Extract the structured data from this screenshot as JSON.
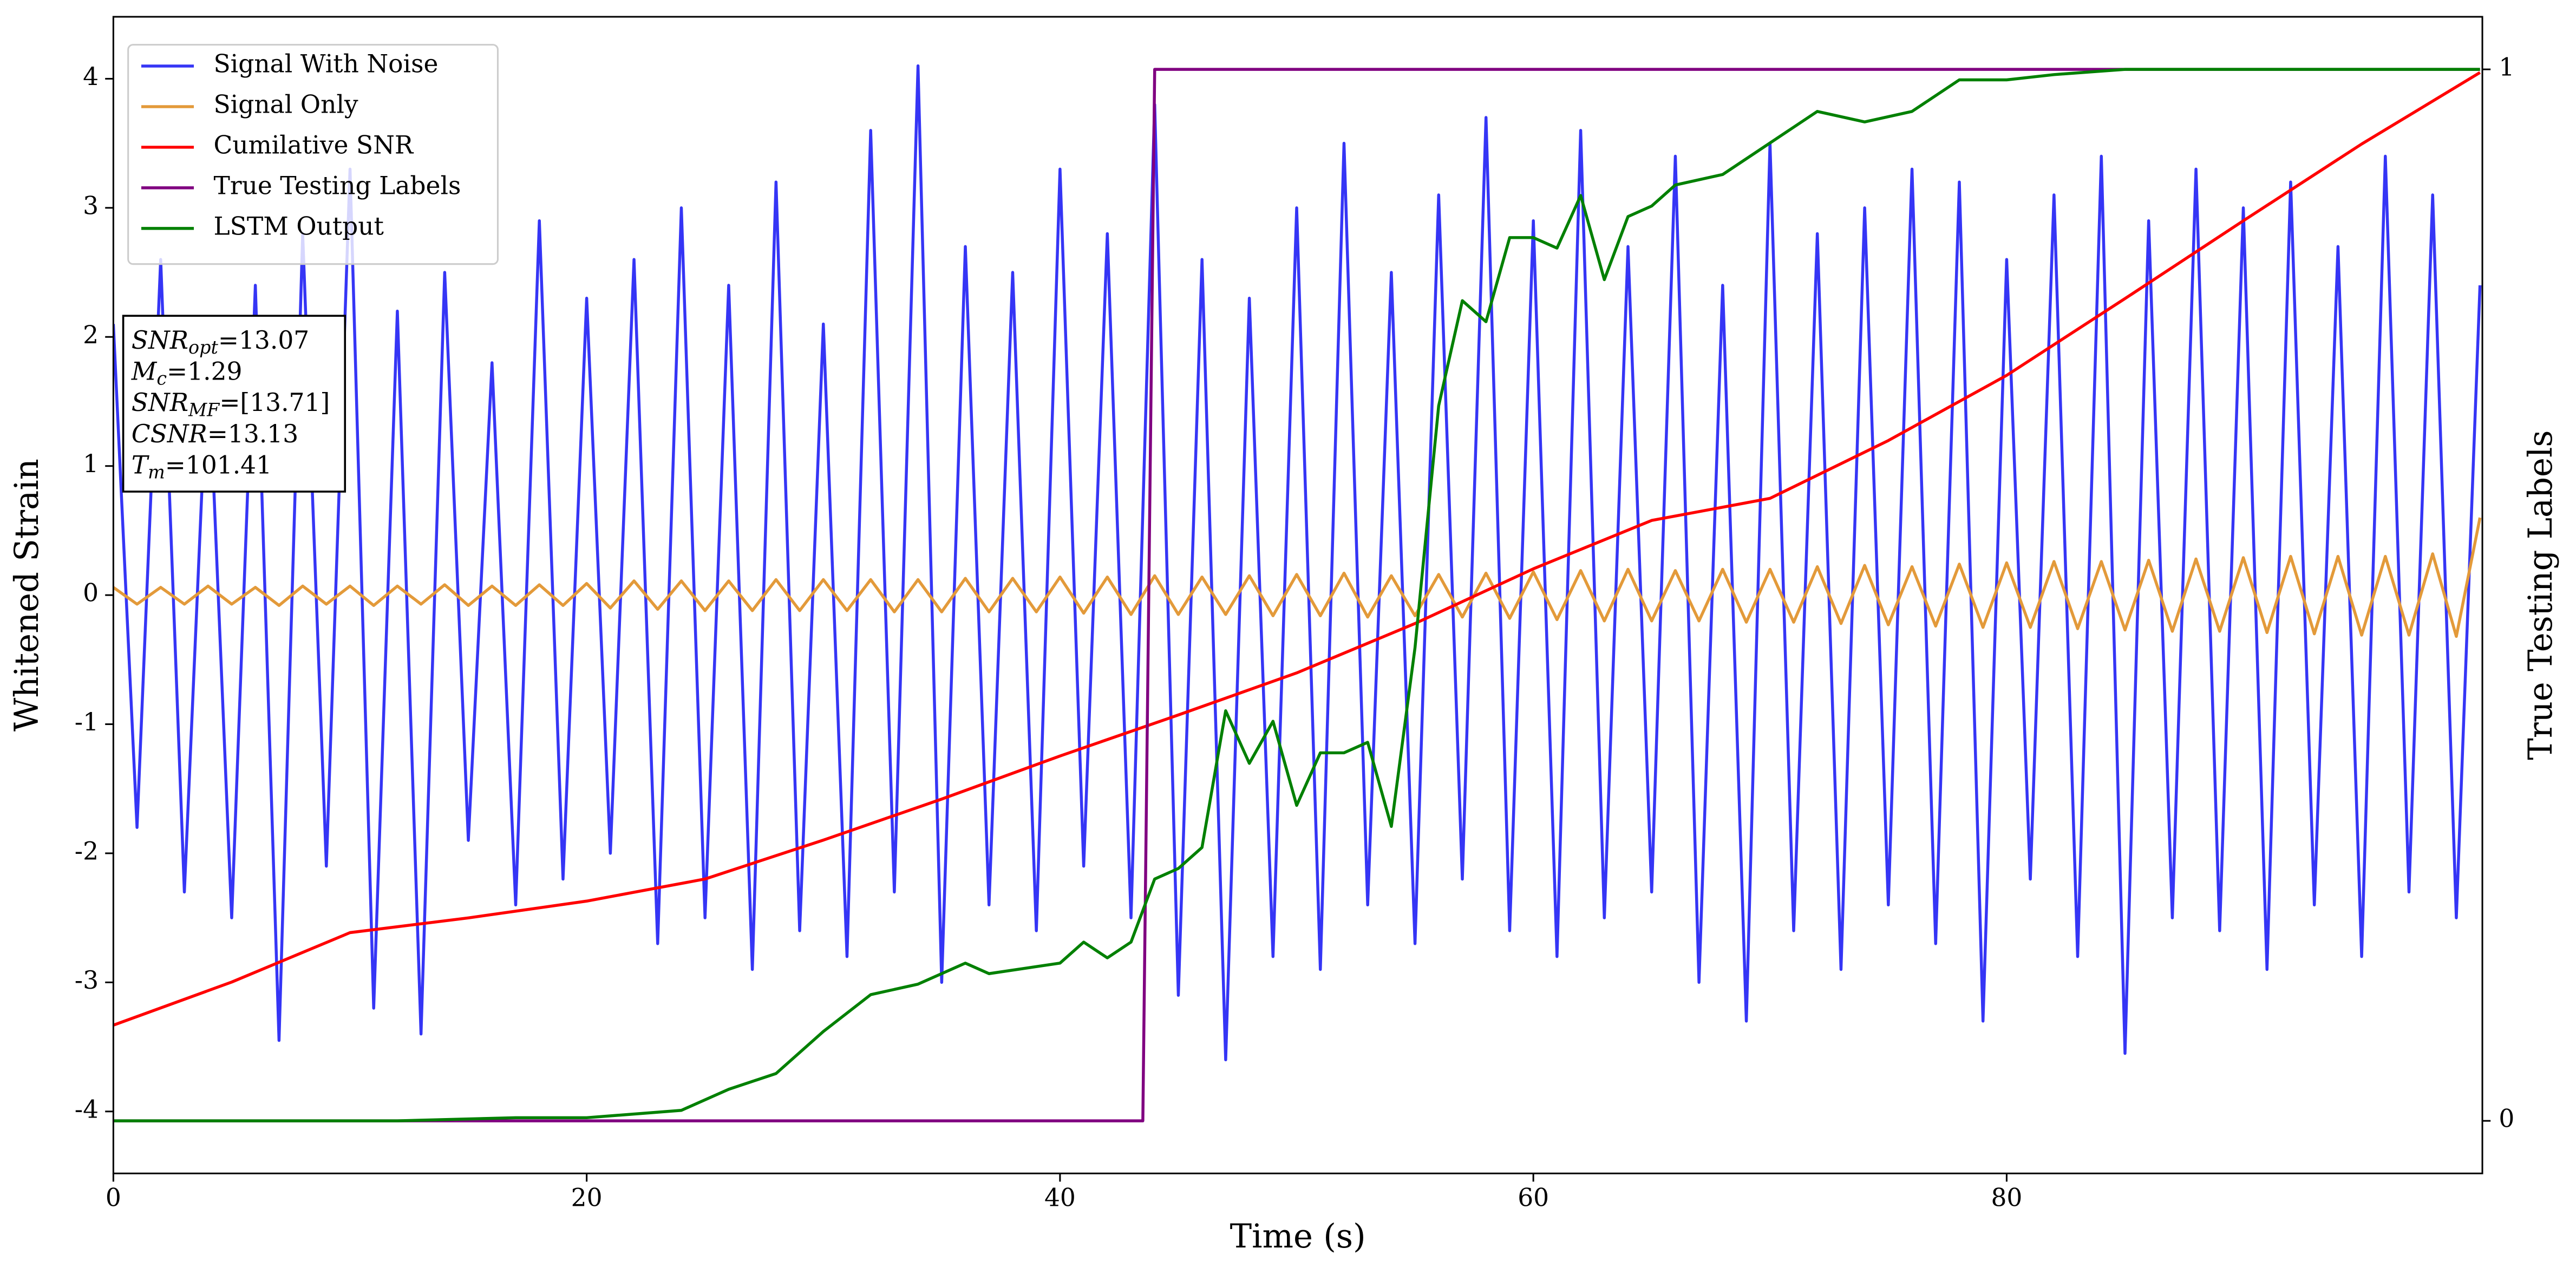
{
  "chart_data": {
    "type": "line",
    "xlabel": "Time (s)",
    "ylabel": "Whitened Strain",
    "y2label": "True Testing Labels",
    "xlim": [
      0,
      100.1
    ],
    "ylim": [
      -4.48,
      4.48
    ],
    "y2lim": [
      -0.05,
      1.05
    ],
    "xticks": [
      0,
      20,
      40,
      60,
      80
    ],
    "yticks": [
      -4,
      -3,
      -2,
      -1,
      0,
      1,
      2,
      3,
      4
    ],
    "y2ticks": [
      0,
      1
    ],
    "legend": "upper left",
    "x": [
      0,
      1,
      2,
      3,
      4,
      5,
      6,
      7,
      8,
      9,
      10,
      11,
      12,
      13,
      14,
      15,
      16,
      17,
      18,
      19,
      20,
      21,
      22,
      23,
      24,
      25,
      26,
      27,
      28,
      29,
      30,
      31,
      32,
      33,
      34,
      35,
      36,
      37,
      38,
      39,
      40,
      41,
      42,
      43,
      44,
      45,
      46,
      47,
      48,
      49,
      50,
      51,
      52,
      53,
      54,
      55,
      56,
      57,
      58,
      59,
      60,
      61,
      62,
      63,
      64,
      65,
      66,
      67,
      68,
      69,
      70,
      71,
      72,
      73,
      74,
      75,
      76,
      77,
      78,
      79,
      80,
      81,
      82,
      83,
      84,
      85,
      86,
      87,
      88,
      89,
      90,
      91,
      92,
      93,
      94,
      95,
      96,
      97,
      98,
      99,
      100
    ],
    "series": [
      {
        "name": "Signal With Noise",
        "color": "#3535f5",
        "values": [
          2.1,
          -1.8,
          2.6,
          -2.3,
          1.9,
          -2.5,
          2.4,
          -3.45,
          2.8,
          -2.1,
          3.3,
          -3.2,
          2.2,
          -3.4,
          2.5,
          -1.9,
          1.8,
          -2.4,
          2.9,
          -2.2,
          2.3,
          -2.0,
          2.6,
          -2.7,
          3.0,
          -2.5,
          2.4,
          -2.9,
          3.2,
          -2.6,
          2.1,
          -2.8,
          3.6,
          -2.3,
          4.1,
          -3.0,
          2.7,
          -2.4,
          2.5,
          -2.6,
          3.3,
          -2.1,
          2.8,
          -2.5,
          3.8,
          -3.1,
          2.6,
          -3.6,
          2.3,
          -2.8,
          3.0,
          -2.9,
          3.5,
          -2.4,
          2.5,
          -2.7,
          3.1,
          -2.2,
          3.7,
          -2.6,
          2.9,
          -2.8,
          3.6,
          -2.5,
          2.7,
          -2.3,
          3.4,
          -3.0,
          2.4,
          -3.3,
          3.5,
          -2.6,
          2.8,
          -2.9,
          3.0,
          -2.4,
          3.3,
          -2.7,
          3.2,
          -3.3,
          2.6,
          -2.2,
          3.1,
          -2.8,
          3.4,
          -3.55,
          2.9,
          -2.5,
          3.3,
          -2.6,
          3.0,
          -2.9,
          3.2,
          -2.4,
          2.7,
          -2.8,
          3.4,
          -2.3,
          3.1,
          -2.5,
          2.4
        ]
      },
      {
        "name": "Signal Only",
        "color": "#e39a3a",
        "values": [
          0.06,
          -0.07,
          0.06,
          -0.07,
          0.07,
          -0.07,
          0.06,
          -0.08,
          0.07,
          -0.07,
          0.07,
          -0.08,
          0.07,
          -0.07,
          0.08,
          -0.08,
          0.07,
          -0.08,
          0.08,
          -0.08,
          0.09,
          -0.1,
          0.11,
          -0.11,
          0.11,
          -0.12,
          0.11,
          -0.12,
          0.12,
          -0.12,
          0.12,
          -0.12,
          0.12,
          -0.13,
          0.12,
          -0.13,
          0.13,
          -0.13,
          0.13,
          -0.13,
          0.14,
          -0.14,
          0.14,
          -0.15,
          0.15,
          -0.15,
          0.14,
          -0.15,
          0.15,
          -0.16,
          0.16,
          -0.16,
          0.17,
          -0.17,
          0.15,
          -0.16,
          0.16,
          -0.17,
          0.17,
          -0.18,
          0.18,
          -0.19,
          0.19,
          -0.2,
          0.2,
          -0.2,
          0.19,
          -0.2,
          0.2,
          -0.21,
          0.2,
          -0.21,
          0.22,
          -0.22,
          0.23,
          -0.23,
          0.22,
          -0.24,
          0.24,
          -0.25,
          0.25,
          -0.25,
          0.26,
          -0.26,
          0.26,
          -0.27,
          0.27,
          -0.28,
          0.28,
          -0.28,
          0.29,
          -0.29,
          0.3,
          -0.3,
          0.3,
          -0.31,
          0.3,
          -0.31,
          0.32,
          -0.32,
          0.6
        ]
      },
      {
        "name": "Cumilative SNR",
        "color": "#ff0000",
        "axis": "y2",
        "x": [
          0,
          5,
          10,
          15,
          20,
          25,
          30,
          35,
          40,
          45,
          50,
          55,
          60,
          65,
          70,
          75,
          80,
          85,
          90,
          95,
          100
        ],
        "values": [
          0.091,
          0.132,
          0.179,
          0.193,
          0.209,
          0.23,
          0.267,
          0.306,
          0.347,
          0.386,
          0.426,
          0.473,
          0.525,
          0.571,
          0.592,
          0.647,
          0.709,
          0.782,
          0.856,
          0.929,
          0.997
        ]
      },
      {
        "name": "True Testing Labels",
        "color": "#800080",
        "axis": "y2",
        "x": [
          0,
          43.5,
          44,
          100
        ],
        "values": [
          0,
          0,
          1,
          1
        ]
      },
      {
        "name": "LSTM Output",
        "color": "#008000",
        "axis": "y2",
        "x": [
          0,
          12,
          17,
          20,
          24,
          26,
          28,
          30,
          32,
          34,
          36,
          37,
          40,
          41,
          42,
          43,
          44,
          45,
          46,
          47,
          48,
          49,
          50,
          51,
          52,
          53,
          54,
          55,
          56,
          57,
          58,
          59,
          60,
          61,
          62,
          63,
          64,
          65,
          66,
          68,
          70,
          72,
          74,
          76,
          78,
          80,
          82,
          85,
          90,
          100
        ],
        "values": [
          0,
          0,
          0.003,
          0.003,
          0.01,
          0.03,
          0.045,
          0.085,
          0.12,
          0.13,
          0.15,
          0.14,
          0.15,
          0.17,
          0.155,
          0.17,
          0.23,
          0.24,
          0.26,
          0.39,
          0.34,
          0.38,
          0.3,
          0.35,
          0.35,
          0.36,
          0.28,
          0.45,
          0.68,
          0.78,
          0.76,
          0.84,
          0.84,
          0.83,
          0.88,
          0.8,
          0.86,
          0.87,
          0.89,
          0.9,
          0.93,
          0.96,
          0.95,
          0.96,
          0.99,
          0.99,
          0.995,
          1.0,
          1.0,
          1.0
        ]
      }
    ],
    "annotation": [
      {
        "base": "SNR",
        "sub": "opt",
        "rest": "=13.07"
      },
      {
        "base": "M",
        "sub": "c",
        "rest": "=1.29"
      },
      {
        "base": "SNR",
        "sub": "MF",
        "rest": "=[13.71]"
      },
      {
        "base": "CSNR",
        "rest": "=13.13"
      },
      {
        "base": "T",
        "sub": "m",
        "rest": "=101.41"
      }
    ]
  }
}
